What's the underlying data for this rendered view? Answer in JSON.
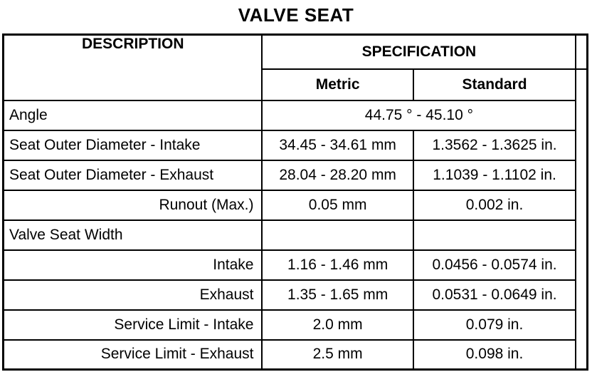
{
  "title": "VALVE SEAT",
  "table": {
    "headers": {
      "description": "DESCRIPTION",
      "specification": "SPECIFICATION",
      "metric": "Metric",
      "standard": "Standard"
    },
    "rows": [
      {
        "label": "Angle",
        "label_align": "left",
        "span": "44.75 ° - 45.10 °"
      },
      {
        "label": "Seat Outer Diameter - Intake",
        "label_align": "left",
        "metric": "34.45 - 34.61 mm",
        "standard": "1.3562 - 1.3625 in."
      },
      {
        "label": "Seat Outer Diameter - Exhaust",
        "label_align": "left",
        "metric": "28.04 - 28.20 mm",
        "standard": "1.1039 - 1.1102 in."
      },
      {
        "label": "Runout (Max.)",
        "label_align": "right",
        "metric": "0.05 mm",
        "standard": "0.002 in."
      },
      {
        "label": "Valve Seat Width",
        "label_align": "left",
        "metric": "",
        "standard": ""
      },
      {
        "label": "Intake",
        "label_align": "right",
        "metric": "1.16 - 1.46 mm",
        "standard": "0.0456 - 0.0574 in."
      },
      {
        "label": "Exhaust",
        "label_align": "right",
        "metric": "1.35 - 1.65 mm",
        "standard": "0.0531 - 0.0649 in."
      },
      {
        "label": "Service Limit - Intake",
        "label_align": "right",
        "metric": "2.0 mm",
        "standard": "0.079 in."
      },
      {
        "label": "Service Limit - Exhaust",
        "label_align": "right",
        "metric": "2.5 mm",
        "standard": "0.098 in."
      }
    ]
  }
}
